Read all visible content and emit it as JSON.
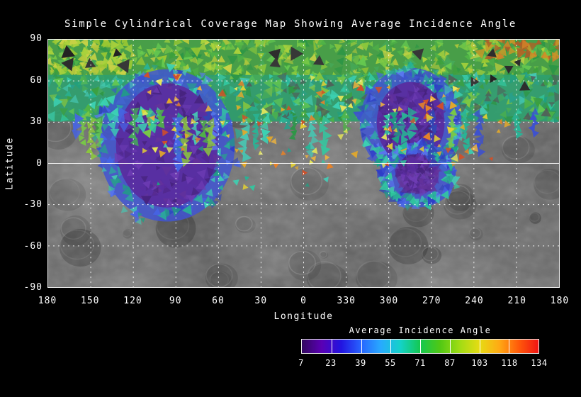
{
  "figure": {
    "background": "#000000",
    "text_color": "#ffffff",
    "grid_color": "#ffffff"
  },
  "chart_data": {
    "type": "heatmap",
    "title": "Simple Cylindrical Coverage Map Showing Average Incidence Angle",
    "xlabel": "Longitude",
    "ylabel": "Latitude",
    "x_tick_labels": [
      "180",
      "150",
      "120",
      "90",
      "60",
      "30",
      "0",
      "330",
      "300",
      "270",
      "240",
      "210",
      "180"
    ],
    "y_tick_labels": [
      "90",
      "60",
      "30",
      "0",
      "-30",
      "-60",
      "-90"
    ],
    "x_range": [
      180,
      -180
    ],
    "y_range": [
      90,
      -90
    ],
    "grid": true,
    "projection": "simple cylindrical",
    "colorbar": {
      "title": "Average Incidence Angle",
      "tick_labels": [
        "7",
        "23",
        "39",
        "55",
        "71",
        "87",
        "103",
        "118",
        "134"
      ],
      "min": 7,
      "max": 134,
      "gradient": [
        "#32085f",
        "#5a00b4",
        "#2214e1",
        "#2864ff",
        "#28aaff",
        "#14d2c8",
        "#14c850",
        "#50c814",
        "#a0dc14",
        "#e6dc14",
        "#ffaa14",
        "#ff5a0a",
        "#f01414"
      ]
    },
    "coverage": {
      "north_band": {
        "lat_range": [
          62,
          90
        ],
        "base_color": "#46a046"
      },
      "mid_band": {
        "lat_range": [
          30,
          62
        ],
        "base_color": "#2fa06e"
      },
      "blobs": [
        {
          "name": "western-low-incidence-region",
          "cx": 168,
          "cy": 150,
          "rx": 72,
          "ry": 88,
          "core": "#5a2da0",
          "ring": "#4155d2"
        },
        {
          "name": "eastern-low-incidence-region",
          "cx": 513,
          "cy": 118,
          "rx": 48,
          "ry": 58,
          "core": "#5a2da0",
          "ring": "#4155d2"
        },
        {
          "name": "eastern-secondary-region",
          "cx": 523,
          "cy": 192,
          "rx": 30,
          "ry": 26,
          "core": "#643ca0",
          "ring": "#4155d2"
        }
      ]
    }
  }
}
